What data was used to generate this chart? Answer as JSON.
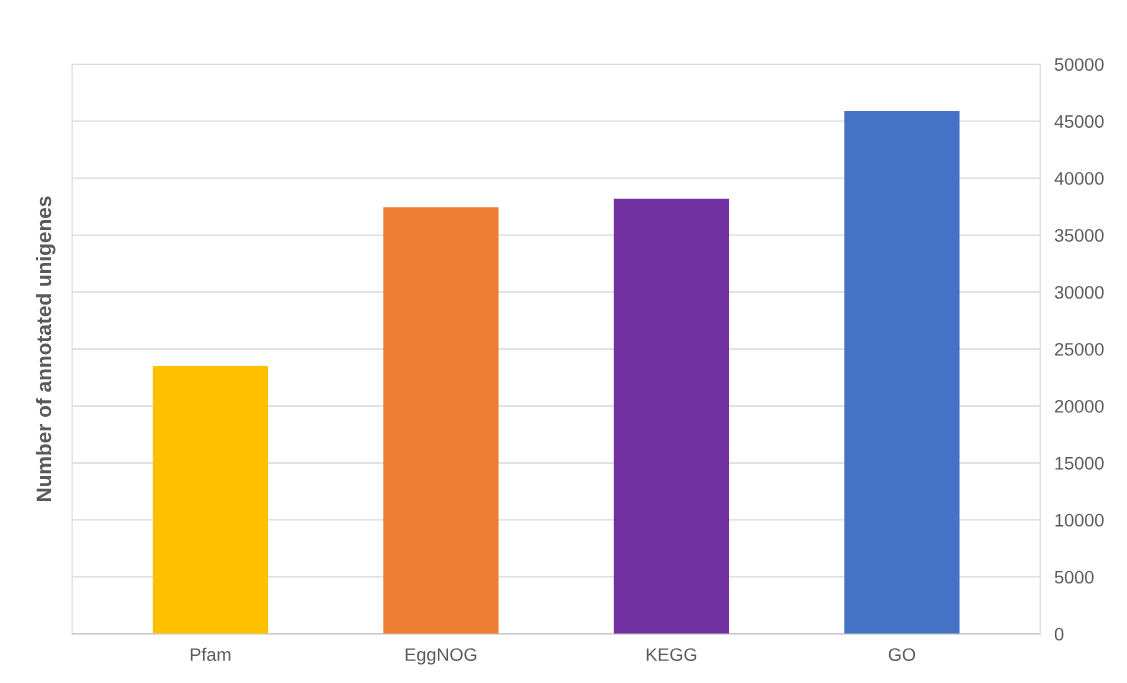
{
  "chart_data": {
    "type": "bar",
    "ylabel": "Number of annotated unigenes",
    "categories": [
      "Pfam",
      "EggNOG",
      "KEGG",
      "GO"
    ],
    "values": [
      23500,
      37450,
      38200,
      45900
    ],
    "colors": [
      "#ffc000",
      "#ed7d31",
      "#7030a0",
      "#4472c4"
    ],
    "ylim": [
      0,
      50000
    ],
    "yticks": [
      0,
      5000,
      10000,
      15000,
      20000,
      25000,
      30000,
      35000,
      40000,
      45000,
      50000
    ],
    "grid": "y"
  }
}
